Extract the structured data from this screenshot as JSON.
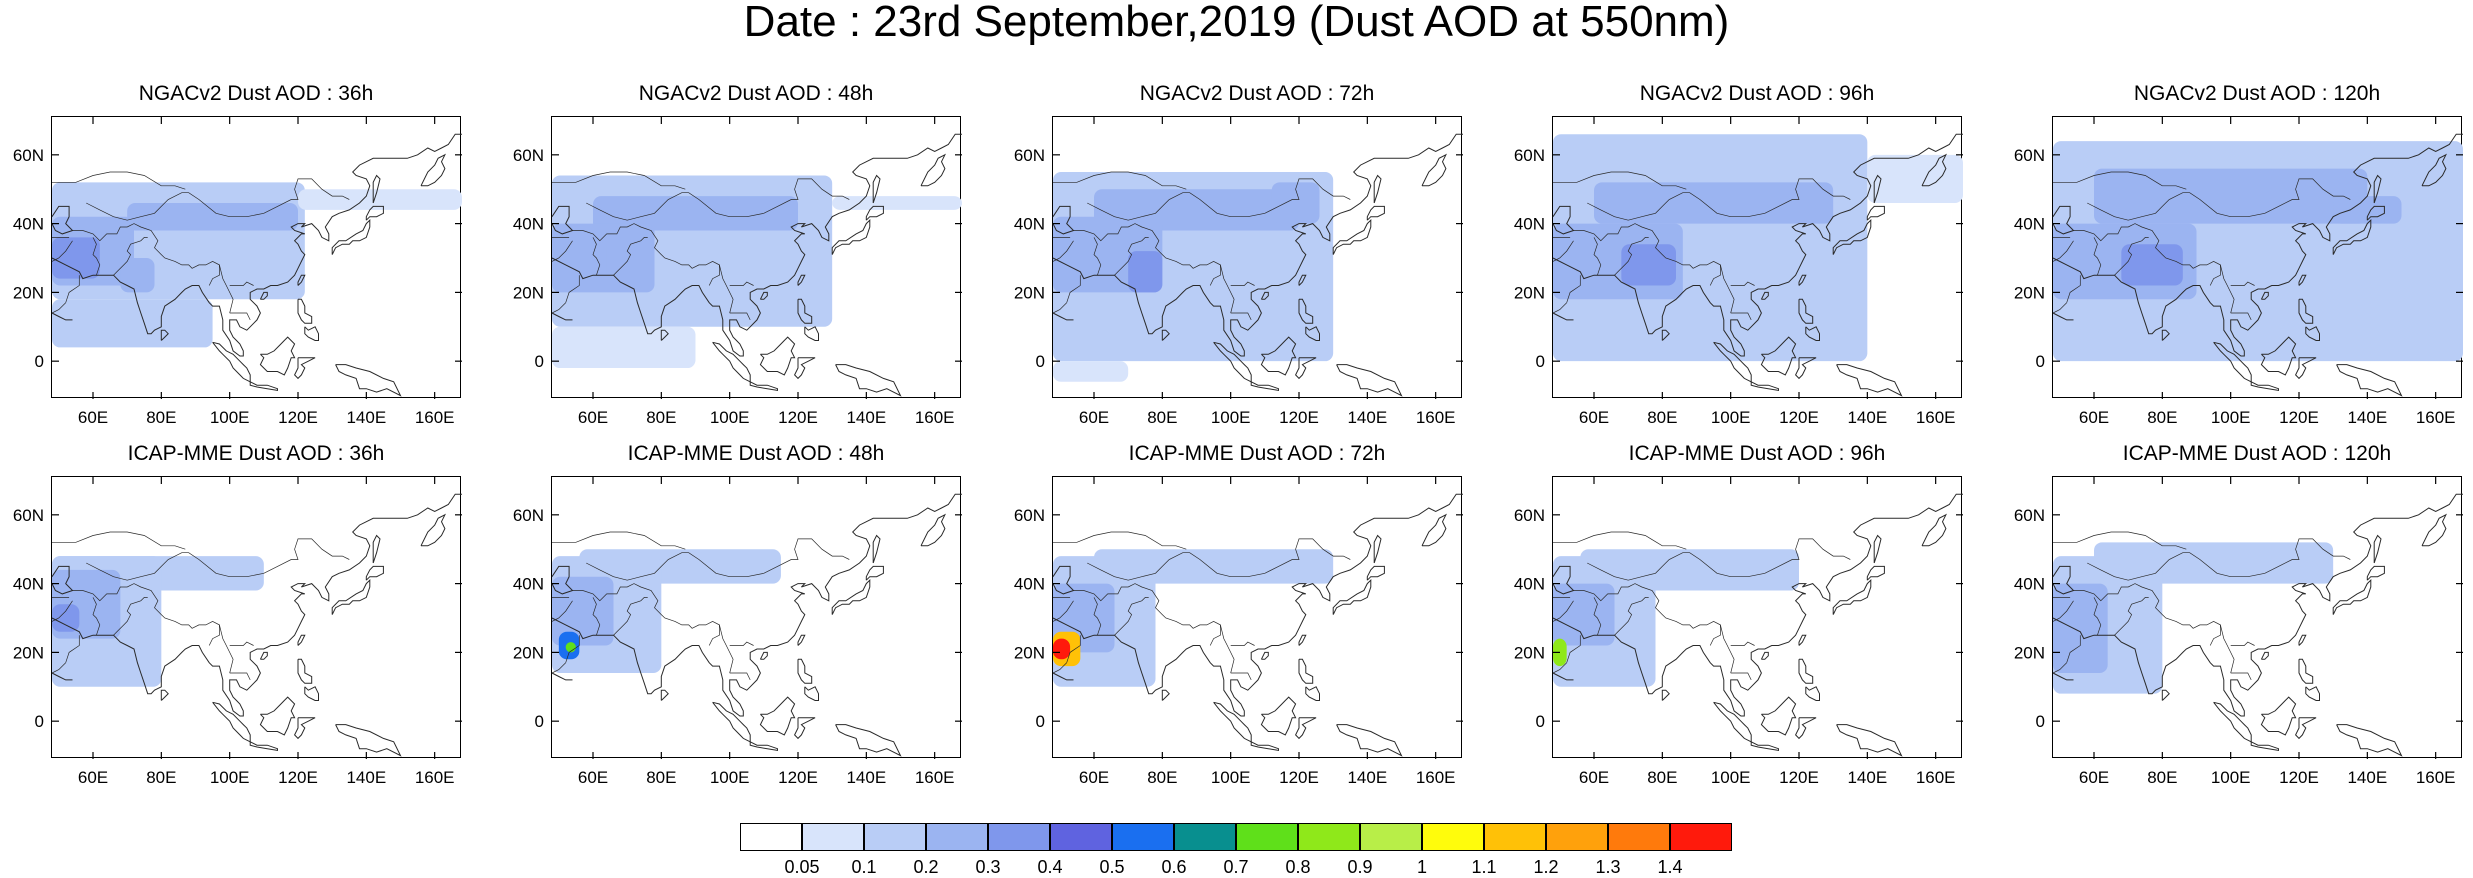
{
  "figure": {
    "title": "Date : 23rd September,2019 (Dust AOD at 550nm)"
  },
  "colors": {
    "coast": "#2a2a2a",
    "levels": [
      "#ffffff",
      "#d8e4fb",
      "#b9cdf6",
      "#9bb4f1",
      "#7f97ec",
      "#5f63e0",
      "#1a6ff0",
      "#088f8f",
      "#5fe01a",
      "#8fe81a",
      "#b8ee48",
      "#fffc0c",
      "#ffc107",
      "#ffa10c",
      "#ff7a0c",
      "#ff1a0c"
    ]
  },
  "chart_data": {
    "type": "heatmap",
    "layout": {
      "rows": 2,
      "columns": 5
    },
    "axes": {
      "x_ticks": [
        "60E",
        "80E",
        "100E",
        "120E",
        "140E",
        "160E"
      ],
      "x_values": [
        60,
        80,
        100,
        120,
        140,
        160
      ],
      "y_ticks": [
        "60N",
        "40N",
        "20N",
        "0"
      ],
      "y_values": [
        60,
        40,
        20,
        0
      ],
      "xlim": [
        48,
        168
      ],
      "ylim": [
        -11,
        71
      ]
    },
    "colorbar": {
      "labels": [
        "0.05",
        "0.1",
        "0.2",
        "0.3",
        "0.4",
        "0.5",
        "0.6",
        "0.7",
        "0.8",
        "0.9",
        "1",
        "1.1",
        "1.2",
        "1.3",
        "1.4"
      ],
      "levels": [
        0.05,
        0.1,
        0.2,
        0.3,
        0.4,
        0.5,
        0.6,
        0.7,
        0.8,
        0.9,
        1,
        1.1,
        1.2,
        1.3,
        1.4
      ]
    },
    "panels": [
      {
        "title": "NGACv2 Dust AOD : 36h",
        "model": "NGACv2",
        "lead_hours": 36,
        "regions": [
          {
            "lon": [
              48,
              122
            ],
            "lat": [
              18,
              52
            ],
            "aod": 0.12
          },
          {
            "lon": [
              48,
              95
            ],
            "lat": [
              4,
              18
            ],
            "aod": 0.1
          },
          {
            "lon": [
              120,
              168
            ],
            "lat": [
              44,
              50
            ],
            "aod": 0.08
          },
          {
            "lon": [
              70,
              120
            ],
            "lat": [
              38,
              46
            ],
            "aod": 0.2
          },
          {
            "lon": [
              48,
              72
            ],
            "lat": [
              22,
              42
            ],
            "aod": 0.25
          },
          {
            "lon": [
              48,
              62
            ],
            "lat": [
              24,
              36
            ],
            "aod": 0.32
          },
          {
            "lon": [
              68,
              78
            ],
            "lat": [
              20,
              30
            ],
            "aod": 0.22
          }
        ]
      },
      {
        "title": "NGACv2 Dust AOD : 48h",
        "model": "NGACv2",
        "lead_hours": 48,
        "regions": [
          {
            "lon": [
              48,
              130
            ],
            "lat": [
              10,
              54
            ],
            "aod": 0.12
          },
          {
            "lon": [
              48,
              90
            ],
            "lat": [
              -2,
              10
            ],
            "aod": 0.08
          },
          {
            "lon": [
              130,
              168
            ],
            "lat": [
              44,
              48
            ],
            "aod": 0.06
          },
          {
            "lon": [
              60,
              120
            ],
            "lat": [
              38,
              48
            ],
            "aod": 0.2
          },
          {
            "lon": [
              48,
              78
            ],
            "lat": [
              20,
              40
            ],
            "aod": 0.22
          },
          {
            "lon": [
              48,
              64
            ],
            "lat": [
              22,
              36
            ],
            "aod": 0.28
          }
        ]
      },
      {
        "title": "NGACv2 Dust AOD : 72h",
        "model": "NGACv2",
        "lead_hours": 72,
        "regions": [
          {
            "lon": [
              48,
              130
            ],
            "lat": [
              0,
              55
            ],
            "aod": 0.12
          },
          {
            "lon": [
              48,
              70
            ],
            "lat": [
              -6,
              0
            ],
            "aod": 0.08
          },
          {
            "lon": [
              60,
              120
            ],
            "lat": [
              38,
              50
            ],
            "aod": 0.2
          },
          {
            "lon": [
              112,
              126
            ],
            "lat": [
              40,
              52
            ],
            "aod": 0.24
          },
          {
            "lon": [
              48,
              80
            ],
            "lat": [
              20,
              42
            ],
            "aod": 0.25
          },
          {
            "lon": [
              70,
              80
            ],
            "lat": [
              20,
              32
            ],
            "aod": 0.32
          }
        ]
      },
      {
        "title": "NGACv2 Dust AOD : 96h",
        "model": "NGACv2",
        "lead_hours": 96,
        "regions": [
          {
            "lon": [
              48,
              140
            ],
            "lat": [
              0,
              66
            ],
            "aod": 0.12
          },
          {
            "lon": [
              140,
              168
            ],
            "lat": [
              46,
              60
            ],
            "aod": 0.08
          },
          {
            "lon": [
              60,
              130
            ],
            "lat": [
              40,
              52
            ],
            "aod": 0.2
          },
          {
            "lon": [
              48,
              86
            ],
            "lat": [
              18,
              40
            ],
            "aod": 0.25
          },
          {
            "lon": [
              68,
              84
            ],
            "lat": [
              22,
              34
            ],
            "aod": 0.38
          }
        ]
      },
      {
        "title": "NGACv2 Dust AOD : 120h",
        "model": "NGACv2",
        "lead_hours": 120,
        "regions": [
          {
            "lon": [
              48,
              168
            ],
            "lat": [
              0,
              64
            ],
            "aod": 0.12
          },
          {
            "lon": [
              60,
              140
            ],
            "lat": [
              40,
              56
            ],
            "aod": 0.2
          },
          {
            "lon": [
              130,
              150
            ],
            "lat": [
              40,
              48
            ],
            "aod": 0.24
          },
          {
            "lon": [
              48,
              90
            ],
            "lat": [
              18,
              40
            ],
            "aod": 0.25
          },
          {
            "lon": [
              68,
              86
            ],
            "lat": [
              22,
              34
            ],
            "aod": 0.38
          }
        ]
      },
      {
        "title": "ICAP-MME Dust AOD : 36h",
        "model": "ICAP-MME",
        "lead_hours": 36,
        "regions": [
          {
            "lon": [
              48,
              110
            ],
            "lat": [
              38,
              48
            ],
            "aod": 0.12
          },
          {
            "lon": [
              48,
              80
            ],
            "lat": [
              10,
              48
            ],
            "aod": 0.14
          },
          {
            "lon": [
              48,
              68
            ],
            "lat": [
              24,
              44
            ],
            "aod": 0.25
          },
          {
            "lon": [
              48,
              56
            ],
            "lat": [
              26,
              34
            ],
            "aod": 0.32
          }
        ]
      },
      {
        "title": "ICAP-MME Dust AOD : 48h",
        "model": "ICAP-MME",
        "lead_hours": 48,
        "regions": [
          {
            "lon": [
              56,
              115
            ],
            "lat": [
              40,
              50
            ],
            "aod": 0.12
          },
          {
            "lon": [
              48,
              80
            ],
            "lat": [
              14,
              48
            ],
            "aod": 0.14
          },
          {
            "lon": [
              48,
              66
            ],
            "lat": [
              22,
              42
            ],
            "aod": 0.25
          },
          {
            "lon": [
              50,
              56
            ],
            "lat": [
              18,
              26
            ],
            "aod": 0.5
          },
          {
            "lon": [
              52,
              55
            ],
            "lat": [
              20,
              23
            ],
            "aod": 0.75
          }
        ]
      },
      {
        "title": "ICAP-MME Dust AOD : 72h",
        "model": "ICAP-MME",
        "lead_hours": 72,
        "regions": [
          {
            "lon": [
              60,
              130
            ],
            "lat": [
              40,
              50
            ],
            "aod": 0.12
          },
          {
            "lon": [
              48,
              78
            ],
            "lat": [
              10,
              48
            ],
            "aod": 0.14
          },
          {
            "lon": [
              48,
              66
            ],
            "lat": [
              20,
              40
            ],
            "aod": 0.22
          },
          {
            "lon": [
              48,
              56
            ],
            "lat": [
              16,
              26
            ],
            "aod": 1.15
          },
          {
            "lon": [
              48,
              53
            ],
            "lat": [
              18,
              24
            ],
            "aod": 1.45
          }
        ]
      },
      {
        "title": "ICAP-MME Dust AOD : 96h",
        "model": "ICAP-MME",
        "lead_hours": 96,
        "regions": [
          {
            "lon": [
              56,
              120
            ],
            "lat": [
              38,
              50
            ],
            "aod": 0.12
          },
          {
            "lon": [
              48,
              78
            ],
            "lat": [
              10,
              48
            ],
            "aod": 0.14
          },
          {
            "lon": [
              48,
              66
            ],
            "lat": [
              22,
              40
            ],
            "aod": 0.22
          },
          {
            "lon": [
              48,
              52
            ],
            "lat": [
              16,
              24
            ],
            "aod": 0.85
          }
        ]
      },
      {
        "title": "ICAP-MME Dust AOD : 120h",
        "model": "ICAP-MME",
        "lead_hours": 120,
        "regions": [
          {
            "lon": [
              60,
              130
            ],
            "lat": [
              40,
              52
            ],
            "aod": 0.12
          },
          {
            "lon": [
              48,
              80
            ],
            "lat": [
              8,
              48
            ],
            "aod": 0.14
          },
          {
            "lon": [
              48,
              64
            ],
            "lat": [
              14,
              40
            ],
            "aod": 0.22
          }
        ]
      }
    ]
  }
}
